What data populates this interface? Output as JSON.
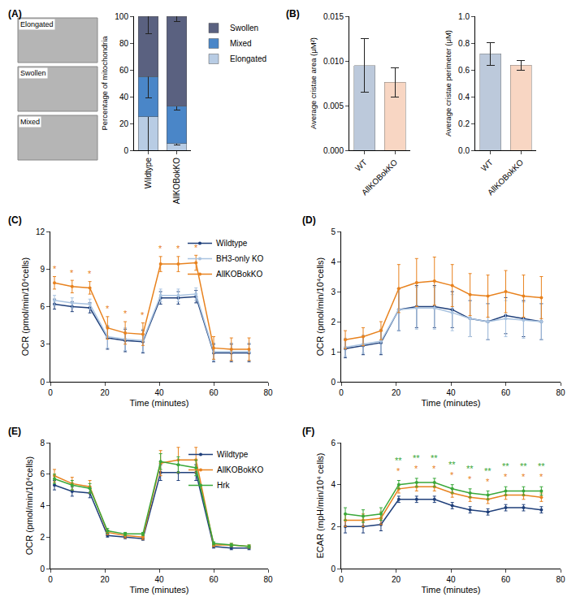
{
  "chart_data": [
    {
      "type": "bar",
      "title": "(A)",
      "stacked": true,
      "grid": false,
      "legend": "right",
      "annotations": [
        "Elongated",
        "Swollen",
        "Mixed"
      ],
      "y_label": "Percentage of mitochondria",
      "categories": [
        "Wildtype",
        "AllKOBokKO"
      ],
      "series": [
        {
          "name": "Elongated",
          "color": "#b8cce4",
          "values": [
            25,
            5
          ],
          "errors": [
            25,
            1
          ]
        },
        {
          "name": "Mixed",
          "color": "#4a86c8",
          "values": [
            30,
            28
          ],
          "errors": [
            16,
            3
          ]
        },
        {
          "name": "Swollen",
          "color": "#5a6180",
          "values": [
            45,
            67
          ],
          "errors": [
            13,
            4
          ]
        }
      ],
      "ylim": [
        0,
        100
      ],
      "yticks": [
        0,
        20,
        40,
        60,
        80,
        100
      ]
    },
    {
      "type": "bar",
      "title": "(B)",
      "grid": false,
      "y_label": "Average cristae area (μM²)",
      "categories": [
        "WT",
        "AllKOBokKO"
      ],
      "values": [
        0.0095,
        0.0076
      ],
      "errors": [
        0.003,
        0.0016
      ],
      "colors": [
        "#bcc9db",
        "#f8d6c3"
      ],
      "ylim": [
        0,
        0.015
      ],
      "yticks": [
        {
          "value": 0,
          "label": "0.000"
        },
        {
          "value": 0.005,
          "label": "0.005"
        },
        {
          "value": 0.01,
          "label": "0.010"
        },
        {
          "value": 0.015,
          "label": "0.015"
        }
      ]
    },
    {
      "type": "bar",
      "grid": false,
      "y_label": "Average cristae perimeter (μM)",
      "categories": [
        "WT",
        "AllKOBokKO"
      ],
      "values": [
        0.72,
        0.635
      ],
      "errors": [
        0.085,
        0.035
      ],
      "colors": [
        "#bcc9db",
        "#f8d6c3"
      ],
      "ylim": [
        0,
        1
      ],
      "yticks": [
        {
          "value": 0,
          "label": "0.0"
        },
        0.2,
        0.4,
        0.6,
        0.8,
        {
          "value": 1,
          "label": "1.0"
        }
      ]
    },
    {
      "type": "line",
      "title": "(C)",
      "grid": false,
      "legend": "upper right",
      "marker": "circle",
      "x_label": "Time (minutes)",
      "y_label": "OCR (pmol/min/10⁴cells)",
      "x": [
        1.5,
        8,
        14.5,
        21,
        27.5,
        34,
        40.5,
        47,
        53.5,
        60,
        66.5,
        73
      ],
      "series": [
        {
          "name": "Wildtype",
          "color": "#1f3f7a",
          "values": [
            6.2,
            6.0,
            5.9,
            3.5,
            3.3,
            3.2,
            6.7,
            6.7,
            6.8,
            2.3,
            2.3,
            2.3
          ],
          "errors": [
            0.4,
            0.4,
            0.4,
            0.9,
            0.9,
            0.9,
            0.5,
            0.5,
            0.5,
            0.7,
            0.7,
            0.7
          ]
        },
        {
          "name": "BH3-only KO",
          "color": "#a9c3e0",
          "values": [
            6.5,
            6.3,
            6.2,
            3.6,
            3.4,
            3.3,
            6.9,
            6.9,
            7.0,
            2.4,
            2.4,
            2.4
          ],
          "errors": [
            0.4,
            0.4,
            0.4,
            0.9,
            0.9,
            0.9,
            0.5,
            0.5,
            0.5,
            0.7,
            0.7,
            0.7
          ]
        },
        {
          "name": "AllKOBokKO",
          "color": "#e8821e",
          "values": [
            7.9,
            7.6,
            7.5,
            4.3,
            3.9,
            3.8,
            9.4,
            9.4,
            9.5,
            2.7,
            2.6,
            2.6
          ],
          "errors": [
            0.5,
            0.5,
            0.5,
            0.9,
            0.9,
            0.9,
            0.6,
            0.6,
            0.6,
            0.9,
            0.9,
            0.9
          ]
        }
      ],
      "annotations": [
        {
          "x": 1.5,
          "y": 8.5,
          "text": "*",
          "color": "#e8821e"
        },
        {
          "x": 8,
          "y": 8.2,
          "text": "*",
          "color": "#e8821e"
        },
        {
          "x": 14.5,
          "y": 8.1,
          "text": "*",
          "color": "#e8821e"
        },
        {
          "x": 21,
          "y": 5.3,
          "text": "*",
          "color": "#e8821e"
        },
        {
          "x": 27.5,
          "y": 4.9,
          "text": "*",
          "color": "#e8821e"
        },
        {
          "x": 34,
          "y": 4.8,
          "text": "*",
          "color": "#e8821e"
        },
        {
          "x": 40.5,
          "y": 10.1,
          "text": "*",
          "color": "#e8821e"
        },
        {
          "x": 47,
          "y": 10.1,
          "text": "*",
          "color": "#e8821e"
        },
        {
          "x": 53.5,
          "y": 10.2,
          "text": "*",
          "color": "#e8821e"
        }
      ],
      "xlim": [
        0,
        80
      ],
      "xticks": [
        0,
        20,
        40,
        60,
        80
      ],
      "ylim": [
        0,
        12
      ],
      "yticks": [
        0,
        3,
        6,
        9,
        12
      ]
    },
    {
      "type": "line",
      "title": "(D)",
      "grid": false,
      "marker": "circle",
      "x_label": "Time (minutes)",
      "y_label": "OCR (pmol/min/10⁴cells)",
      "x": [
        1.5,
        8,
        14.5,
        21,
        27.5,
        34,
        40.5,
        47,
        53.5,
        60,
        66.5,
        73
      ],
      "series": [
        {
          "name": "Wildtype",
          "color": "#1f3f7a",
          "values": [
            1.1,
            1.2,
            1.3,
            2.4,
            2.5,
            2.5,
            2.4,
            2.1,
            2.0,
            2.2,
            2.1,
            2.0
          ],
          "errors": [
            0.3,
            0.3,
            0.4,
            0.7,
            0.7,
            0.7,
            0.6,
            0.6,
            0.6,
            0.6,
            0.6,
            0.6
          ]
        },
        {
          "name": "BH3-only KO",
          "color": "#a9c3e0",
          "values": [
            1.15,
            1.25,
            1.35,
            2.4,
            2.45,
            2.45,
            2.3,
            2.1,
            2.0,
            2.1,
            2.05,
            2.0
          ],
          "errors": [
            0.3,
            0.3,
            0.4,
            0.7,
            0.7,
            0.7,
            0.6,
            0.6,
            0.6,
            0.6,
            0.6,
            0.6
          ]
        },
        {
          "name": "AllKOBokKO",
          "color": "#e8821e",
          "values": [
            1.4,
            1.5,
            1.7,
            3.1,
            3.3,
            3.35,
            3.2,
            2.9,
            2.85,
            3.0,
            2.85,
            2.8
          ],
          "errors": [
            0.3,
            0.3,
            0.3,
            0.8,
            0.8,
            0.8,
            0.7,
            0.7,
            0.7,
            0.7,
            0.7,
            0.7
          ]
        }
      ],
      "xlim": [
        0,
        80
      ],
      "xticks": [
        0,
        20,
        40,
        60,
        80
      ],
      "ylim": [
        0,
        5
      ],
      "yticks": [
        0,
        1,
        2,
        3,
        4,
        5
      ]
    },
    {
      "type": "line",
      "title": "(E)",
      "grid": false,
      "legend": "upper right",
      "marker": "circle",
      "x_label": "Time (minutes)",
      "y_label": "OCR (pmol/min/10⁴cells)",
      "x": [
        1.5,
        8,
        14.5,
        21,
        27.5,
        34,
        40.5,
        47,
        53.5,
        60,
        66.5,
        73
      ],
      "series": [
        {
          "name": "Wildtype",
          "color": "#1f3f7a",
          "values": [
            5.3,
            4.9,
            4.8,
            2.1,
            2.0,
            1.9,
            6.1,
            6.1,
            6.1,
            1.4,
            1.3,
            1.3
          ],
          "errors": [
            0.3,
            0.3,
            0.3,
            0.1,
            0.1,
            0.1,
            0.5,
            0.5,
            0.5,
            0.1,
            0.1,
            0.1
          ]
        },
        {
          "name": "AllKOBokKO",
          "color": "#e8821e",
          "values": [
            5.9,
            5.4,
            5.2,
            2.3,
            2.1,
            2.0,
            6.7,
            6.9,
            6.9,
            1.5,
            1.5,
            1.4
          ],
          "errors": [
            0.4,
            0.4,
            0.4,
            0.15,
            0.15,
            0.15,
            0.8,
            0.8,
            0.8,
            0.1,
            0.1,
            0.1
          ]
        },
        {
          "name": "Hrk",
          "color": "#3aa83a",
          "values": [
            5.7,
            5.3,
            5.1,
            2.4,
            2.2,
            2.2,
            6.8,
            6.6,
            6.4,
            1.6,
            1.5,
            1.4
          ],
          "errors": [
            0.3,
            0.3,
            0.3,
            0.15,
            0.1,
            0.1,
            0.5,
            0.5,
            0.5,
            0.1,
            0.1,
            0.1
          ]
        }
      ],
      "xlim": [
        0,
        80
      ],
      "xticks": [
        0,
        20,
        40,
        60,
        80
      ],
      "ylim": [
        0,
        8
      ],
      "yticks": [
        0,
        2,
        4,
        6,
        8
      ]
    },
    {
      "type": "line",
      "title": "(F)",
      "grid": false,
      "marker": "circle",
      "x_label": "Time (minutes)",
      "y_label": "ECAR (mpH/min/10⁴ cells)",
      "x": [
        1.5,
        8,
        14.5,
        21,
        27.5,
        34,
        40.5,
        47,
        53.5,
        60,
        66.5,
        73
      ],
      "series": [
        {
          "name": "Wildtype",
          "color": "#1f3f7a",
          "values": [
            2.0,
            2.0,
            2.1,
            3.3,
            3.3,
            3.3,
            3.0,
            2.8,
            2.7,
            2.9,
            2.9,
            2.8
          ],
          "errors": [
            0.3,
            0.3,
            0.3,
            0.15,
            0.15,
            0.15,
            0.15,
            0.15,
            0.15,
            0.15,
            0.15,
            0.15
          ]
        },
        {
          "name": "AllKOBokKO",
          "color": "#e8821e",
          "values": [
            2.3,
            2.3,
            2.4,
            3.8,
            3.9,
            3.9,
            3.6,
            3.4,
            3.3,
            3.5,
            3.5,
            3.4
          ],
          "errors": [
            0.3,
            0.3,
            0.3,
            0.2,
            0.2,
            0.2,
            0.2,
            0.2,
            0.2,
            0.2,
            0.2,
            0.2
          ]
        },
        {
          "name": "Hrk",
          "color": "#3aa83a",
          "values": [
            2.6,
            2.5,
            2.6,
            4.0,
            4.1,
            4.1,
            3.8,
            3.6,
            3.5,
            3.7,
            3.7,
            3.7
          ],
          "errors": [
            0.3,
            0.3,
            0.3,
            0.2,
            0.2,
            0.2,
            0.2,
            0.2,
            0.2,
            0.2,
            0.2,
            0.2
          ]
        }
      ],
      "annotations": [
        {
          "x": 21,
          "y": 4.35,
          "text": "*",
          "color": "#e8821e"
        },
        {
          "x": 27.5,
          "y": 4.45,
          "text": "*",
          "color": "#e8821e"
        },
        {
          "x": 34,
          "y": 4.45,
          "text": "*",
          "color": "#e8821e"
        },
        {
          "x": 40.5,
          "y": 4.15,
          "text": "*",
          "color": "#e8821e"
        },
        {
          "x": 47,
          "y": 3.95,
          "text": "*",
          "color": "#e8821e"
        },
        {
          "x": 53.5,
          "y": 3.85,
          "text": "*",
          "color": "#e8821e"
        },
        {
          "x": 60,
          "y": 4.05,
          "text": "*",
          "color": "#e8821e"
        },
        {
          "x": 66.5,
          "y": 4.05,
          "text": "*",
          "color": "#e8821e"
        },
        {
          "x": 73,
          "y": 4.05,
          "text": "*",
          "color": "#e8821e"
        },
        {
          "x": 21,
          "y": 4.85,
          "text": "**",
          "color": "#3aa83a"
        },
        {
          "x": 27.5,
          "y": 4.95,
          "text": "**",
          "color": "#3aa83a"
        },
        {
          "x": 34,
          "y": 4.95,
          "text": "**",
          "color": "#3aa83a"
        },
        {
          "x": 40.5,
          "y": 4.65,
          "text": "**",
          "color": "#3aa83a"
        },
        {
          "x": 47,
          "y": 4.45,
          "text": "**",
          "color": "#3aa83a"
        },
        {
          "x": 53.5,
          "y": 4.35,
          "text": "**",
          "color": "#3aa83a"
        },
        {
          "x": 60,
          "y": 4.55,
          "text": "**",
          "color": "#3aa83a"
        },
        {
          "x": 66.5,
          "y": 4.55,
          "text": "**",
          "color": "#3aa83a"
        },
        {
          "x": 73,
          "y": 4.55,
          "text": "**",
          "color": "#3aa83a"
        }
      ],
      "xlim": [
        0,
        80
      ],
      "xticks": [
        0,
        20,
        40,
        60,
        80
      ],
      "ylim": [
        0,
        6
      ],
      "yticks": [
        0,
        2,
        4,
        6
      ]
    }
  ]
}
